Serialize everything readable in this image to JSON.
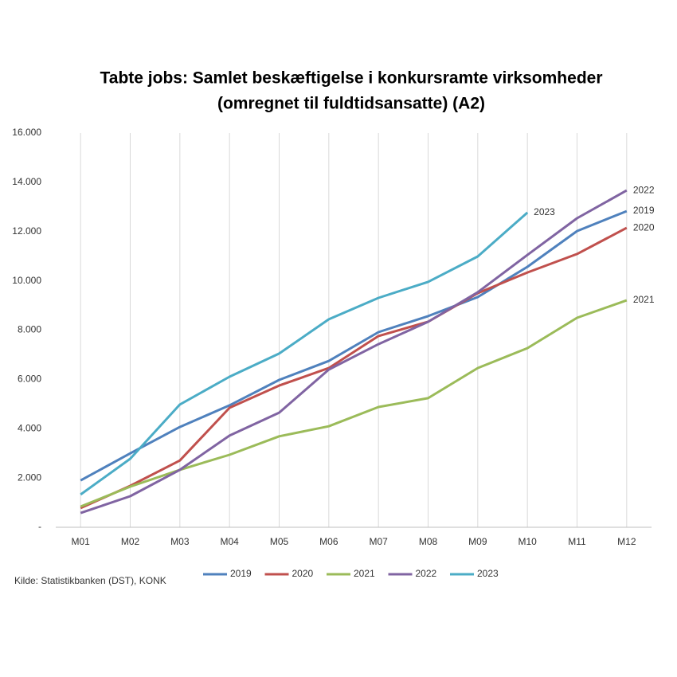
{
  "chart_data": {
    "type": "line",
    "title": [
      "Tabte jobs: Samlet beskæftigelse i konkursramte virksomheder",
      "(omregnet til fuldtidsansatte) (A2)"
    ],
    "source": "Kilde: Statistikbanken (DST), KONK",
    "categories": [
      "M01",
      "M02",
      "M03",
      "M04",
      "M05",
      "M06",
      "M07",
      "M08",
      "M09",
      "M10",
      "M11",
      "M12"
    ],
    "series": [
      {
        "name": "2019",
        "color": "#4f81bd",
        "values": [
          1900,
          3000,
          4070,
          4950,
          5980,
          6750,
          7920,
          8570,
          9340,
          10570,
          12020,
          12830
        ]
      },
      {
        "name": "2020",
        "color": "#c0504d",
        "values": [
          780,
          1680,
          2710,
          4850,
          5750,
          6460,
          7760,
          8340,
          9500,
          10340,
          11090,
          12150
        ]
      },
      {
        "name": "2021",
        "color": "#9bbb59",
        "values": [
          840,
          1650,
          2330,
          2940,
          3690,
          4100,
          4880,
          5240,
          6460,
          7270,
          8500,
          9210
        ]
      },
      {
        "name": "2022",
        "color": "#8064a2",
        "values": [
          580,
          1260,
          2330,
          3720,
          4650,
          6400,
          7430,
          8340,
          9540,
          11050,
          12540,
          13670
        ]
      },
      {
        "name": "2023",
        "color": "#4bacc6",
        "values": [
          1330,
          2780,
          4980,
          6110,
          7050,
          8440,
          9310,
          9960,
          10990,
          12770,
          null,
          null
        ]
      }
    ],
    "ylim": [
      0,
      16000
    ],
    "yticks": [
      {
        "value": 0,
        "label": "-"
      },
      {
        "value": 2000,
        "label": "2.000"
      },
      {
        "value": 4000,
        "label": "4.000"
      },
      {
        "value": 6000,
        "label": "6.000"
      },
      {
        "value": 8000,
        "label": "8.000"
      },
      {
        "value": 10000,
        "label": "10.000"
      },
      {
        "value": 12000,
        "label": "12.000"
      },
      {
        "value": 14000,
        "label": "14.000"
      },
      {
        "value": 16000,
        "label": "16.000"
      }
    ],
    "grid": true,
    "legend": "bottom",
    "end_labels": true
  }
}
